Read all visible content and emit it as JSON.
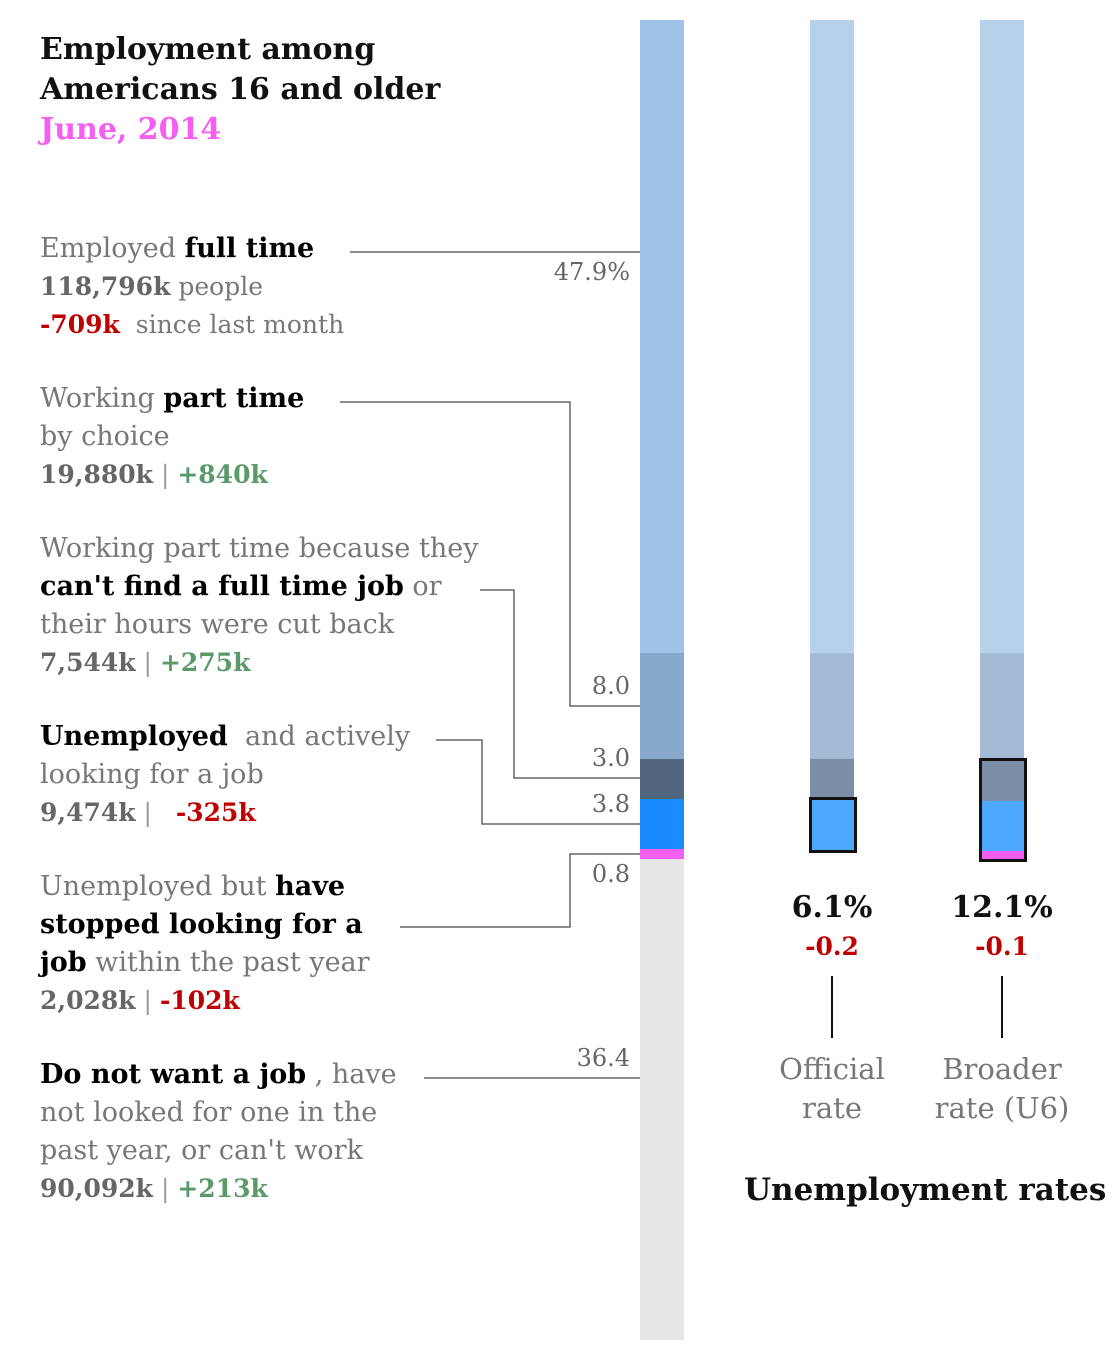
{
  "header": {
    "title_line1": "Employment among",
    "title_line2": "Americans 16 and older",
    "date": "June, 2014"
  },
  "colors": {
    "full_time": "#9ec3e6",
    "part_time_choice": "#87a9cc",
    "part_time_economic": "#50677f",
    "unemployed": "#1a8cff",
    "discouraged": "#f55ef0",
    "not_in_labor_force": "#e6e6e6",
    "negative": "#c00000",
    "positive": "#5a9a6a",
    "date": "#f55ef0"
  },
  "categories": [
    {
      "id": "full_time",
      "line1_pre": "Employed ",
      "line1_bold": "full time",
      "count": "118,796k",
      "count_suffix": " people",
      "change": "-709k",
      "change_suffix": "  since last month",
      "sign": "neg"
    },
    {
      "id": "part_time_choice",
      "line1_pre": "Working ",
      "line1_bold": "part time",
      "line2": "by choice",
      "count": "19,880k",
      "change": "+840k",
      "sign": "pos"
    },
    {
      "id": "part_time_economic",
      "line1": "Working part time because they",
      "line2_bold": "can't find a full time job",
      "line2_post": " or",
      "line3": "their hours were cut back",
      "count": "7,544k",
      "change": "+275k",
      "sign": "pos"
    },
    {
      "id": "unemployed",
      "line1_bold": "Unemployed",
      "line1_post": "  and actively",
      "line2": "looking for a job",
      "count": "9,474k",
      "change": "-325k",
      "sign": "neg"
    },
    {
      "id": "discouraged",
      "line1_pre": "Unemployed but ",
      "line1_bold": "have",
      "line2_bold": "stopped looking for a",
      "line3_bold": "job",
      "line3_post": " within the past year",
      "count": "2,028k",
      "change": "-102k",
      "sign": "neg"
    },
    {
      "id": "not_in_labor_force",
      "line1_bold": "Do not want a job",
      "line1_post": " , have",
      "line2": "not looked for one in the",
      "line3": "past year, or can't work",
      "count": "90,092k",
      "change": "+213k",
      "sign": "pos"
    }
  ],
  "separator": " | ",
  "chart_data": {
    "type": "bar",
    "stacked": true,
    "unit": "% of population 16+",
    "series": [
      {
        "name": "Employed full time",
        "value": 47.9,
        "label": "47.9%"
      },
      {
        "name": "Working part time by choice",
        "value": 8.0,
        "label": "8.0"
      },
      {
        "name": "Part time for economic reasons",
        "value": 3.0,
        "label": "3.0"
      },
      {
        "name": "Unemployed and actively looking for a job",
        "value": 3.8,
        "label": "3.8"
      },
      {
        "name": "Unemployed, stopped looking within past year",
        "value": 0.8,
        "label": "0.8"
      },
      {
        "name": "Do not want a job",
        "value": 36.4,
        "label": "36.4"
      }
    ],
    "unemployment_rates": [
      {
        "name_line1": "Official",
        "name_line2": "rate",
        "value": "6.1%",
        "change": "-0.2"
      },
      {
        "name_line1": "Broader",
        "name_line2": "rate (U6)",
        "value": "12.1%",
        "change": "-0.1"
      }
    ],
    "rates_title": "Unemployment rates"
  }
}
